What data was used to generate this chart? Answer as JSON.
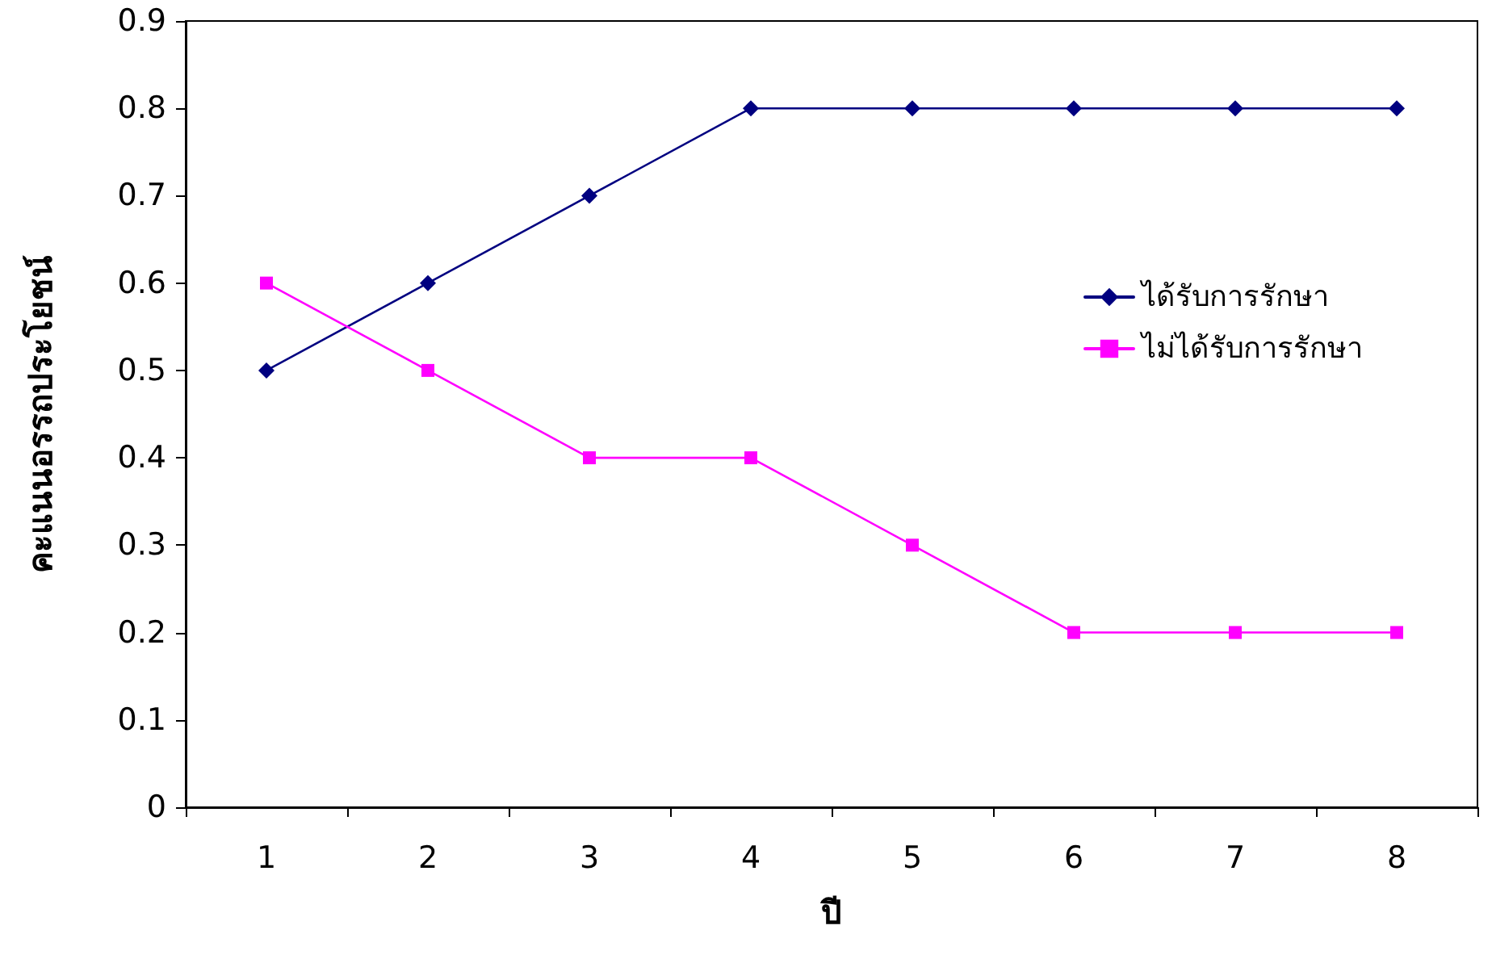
{
  "chart_data": {
    "type": "line",
    "xlabel": "ปี",
    "ylabel": "คะแนนอรรถประโยชน์",
    "categories": [
      "1",
      "2",
      "3",
      "4",
      "5",
      "6",
      "7",
      "8"
    ],
    "series": [
      {
        "name": "ได้รับการรักษา",
        "color": "#000080",
        "marker": "diamond",
        "values": [
          0.5,
          0.6,
          0.7,
          0.8,
          0.8,
          0.8,
          0.8,
          0.8
        ]
      },
      {
        "name": "ไม่ได้รับการรักษา",
        "color": "#ff00ff",
        "marker": "square",
        "values": [
          0.6,
          0.5,
          0.4,
          0.4,
          0.3,
          0.2,
          0.2,
          0.2
        ]
      }
    ],
    "ylim": [
      0,
      0.9
    ],
    "yticks": [
      0,
      0.1,
      0.2,
      0.3,
      0.4,
      0.5,
      0.6,
      0.7,
      0.8,
      0.9
    ],
    "grid": false,
    "legend": "right",
    "line_style": "solid"
  }
}
